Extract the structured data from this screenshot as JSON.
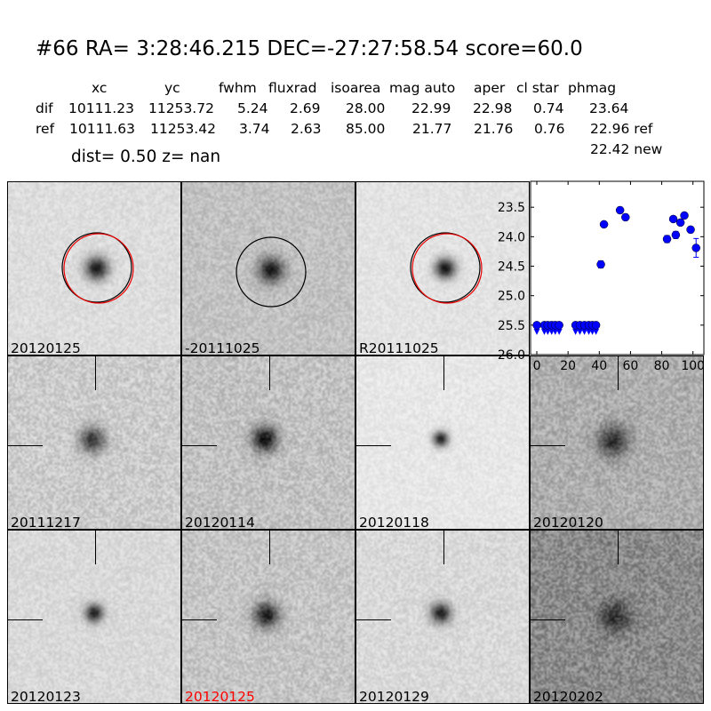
{
  "header": {
    "title": "#66   RA= 3:28:46.215 DEC=-27:27:58.54       score=60.0"
  },
  "table": {
    "columns": [
      "xc",
      "yc",
      "fwhm",
      "fluxrad",
      "isoarea",
      "mag auto",
      "aper",
      "cl star",
      "phmag"
    ],
    "rows": [
      {
        "label": "dif",
        "values": [
          "10111.23",
          "11253.72",
          "5.24",
          "2.69",
          "28.00",
          "22.99",
          "22.98",
          "0.74",
          "23.64"
        ]
      },
      {
        "label": "ref",
        "values": [
          "10111.63",
          "11253.42",
          "3.74",
          "2.63",
          "85.00",
          "21.77",
          "21.76",
          "0.76",
          "22.96 ref"
        ]
      }
    ],
    "extra": "22.42 new"
  },
  "summary": {
    "dist": "dist=  0.50       z=   nan"
  },
  "panels": [
    {
      "label": "20120125"
    },
    {
      "label": "-20111025"
    },
    {
      "label": "R20111025"
    },
    {
      "label": "20111217"
    },
    {
      "label": "20120114"
    },
    {
      "label": "20120118"
    },
    {
      "label": "20120120"
    },
    {
      "label": "20120123"
    },
    {
      "label": "20120125",
      "color": "#ff0000"
    },
    {
      "label": "20120129"
    },
    {
      "label": "20120202"
    }
  ],
  "chart_data": {
    "type": "scatter",
    "title": "",
    "xlabel": "",
    "ylabel": "",
    "xlim": [
      -4,
      107
    ],
    "ylim": [
      26.0,
      23.06
    ],
    "y_inverted": true,
    "grid": false,
    "color": "#0000ff",
    "x_ticks": [
      "0",
      "20",
      "40",
      "60",
      "80",
      "100"
    ],
    "y_ticks": [
      "23.5",
      "24.0",
      "24.5",
      "25.0",
      "25.5",
      "26.0"
    ],
    "detections": [
      {
        "x": 41,
        "y": 24.47,
        "err": 0.06
      },
      {
        "x": 43,
        "y": 23.79,
        "err": 0.03
      },
      {
        "x": 53.3,
        "y": 23.55,
        "err": 0.05
      },
      {
        "x": 56.8,
        "y": 23.67,
        "err": 0.05
      },
      {
        "x": 83.4,
        "y": 24.04,
        "err": 0.06
      },
      {
        "x": 87.4,
        "y": 23.7,
        "err": 0.03
      },
      {
        "x": 89,
        "y": 23.97,
        "err": 0.06
      },
      {
        "x": 92,
        "y": 23.76,
        "err": 0.03
      },
      {
        "x": 94.5,
        "y": 23.64,
        "err": 0.04
      },
      {
        "x": 98.5,
        "y": 23.88,
        "err": 0.05
      },
      {
        "x": 102,
        "y": 24.19,
        "err": 0.16
      }
    ],
    "upper_limits": {
      "y": 25.5,
      "x": [
        0,
        4.8,
        7,
        9.5,
        11.8,
        14.3,
        24.8,
        27.6,
        30.5,
        33.3,
        35.6,
        37.9
      ]
    }
  }
}
